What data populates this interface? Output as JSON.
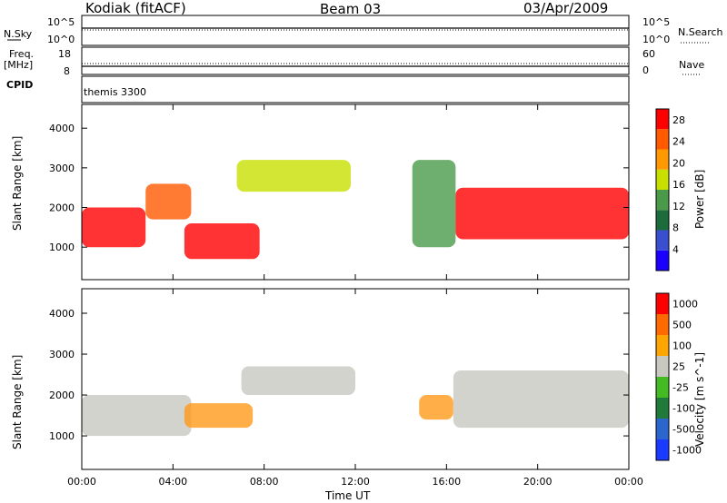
{
  "header": {
    "station": "Kodiak (fitACF)",
    "beam": "Beam 03",
    "date": "03/Apr/2009"
  },
  "top_panels": {
    "nsky_label": "N.Sky",
    "nsearch_label": "N.Search",
    "nsky_ticks": [
      "10^5",
      "10^0"
    ],
    "nsearch_ticks": [
      "10^5",
      "10^0"
    ],
    "freq_label": "Freq.",
    "freq_unit": "[MHz]",
    "freq_ticks": [
      "18",
      "8"
    ],
    "nave_label": "Nave",
    "nave_ticks": [
      "60",
      "0"
    ],
    "cpid_label": "CPID",
    "cpid_value": "themis 3300"
  },
  "chart_data": [
    {
      "type": "heatmap",
      "title": "",
      "xlabel": "Time UT",
      "ylabel": "Slant Range [km]",
      "xlim": [
        "00:00",
        "00:00"
      ],
      "x_ticks": [
        "00:00",
        "04:00",
        "08:00",
        "12:00",
        "16:00",
        "20:00",
        "00:00"
      ],
      "ylim": [
        180,
        4600
      ],
      "y_ticks": [
        1000,
        2000,
        3000,
        4000
      ],
      "colorbar": {
        "label": "Power [dB]",
        "ticks": [
          4,
          8,
          12,
          16,
          20,
          24,
          28
        ],
        "range": [
          0,
          30
        ],
        "colors": [
          "#1a00ff",
          "#3a4fd0",
          "#1c6b3a",
          "#4a9a4a",
          "#c8e000",
          "#ff9900",
          "#ff5a00",
          "#ff0000"
        ]
      },
      "echo_regions": [
        {
          "start_hour": 0.0,
          "end_hour": 2.8,
          "range_min_km": 1000,
          "range_max_km": 2000,
          "max_db": 30
        },
        {
          "start_hour": 2.8,
          "end_hour": 4.8,
          "range_min_km": 1700,
          "range_max_km": 2600,
          "max_db": 26
        },
        {
          "start_hour": 4.5,
          "end_hour": 7.8,
          "range_min_km": 700,
          "range_max_km": 1600,
          "max_db": 30
        },
        {
          "start_hour": 6.8,
          "end_hour": 11.8,
          "range_min_km": 2400,
          "range_max_km": 3200,
          "max_db": 16
        },
        {
          "start_hour": 14.5,
          "end_hour": 16.4,
          "range_min_km": 1000,
          "range_max_km": 3200,
          "max_db": 14
        },
        {
          "start_hour": 16.4,
          "end_hour": 24.0,
          "range_min_km": 1200,
          "range_max_km": 2500,
          "max_db": 28
        }
      ]
    },
    {
      "type": "heatmap",
      "title": "",
      "xlabel": "Time UT",
      "ylabel": "Slant Range [km]",
      "x_ticks": [
        "00:00",
        "04:00",
        "08:00",
        "12:00",
        "16:00",
        "20:00",
        "00:00"
      ],
      "ylim": [
        180,
        4600
      ],
      "y_ticks": [
        1000,
        2000,
        3000,
        4000
      ],
      "colorbar": {
        "label": "Velocity [m s^-1]",
        "ticks": [
          1000,
          500,
          100,
          25,
          -25,
          -100,
          -500,
          -1000
        ],
        "colors": [
          "#1a3aff",
          "#2a66cc",
          "#207a3a",
          "#44bb22",
          "#c8c8c0",
          "#ffa500",
          "#ff6a00",
          "#ff0000"
        ]
      },
      "echo_regions": [
        {
          "start_hour": 0.0,
          "end_hour": 4.8,
          "range_min_km": 1000,
          "range_max_km": 2000,
          "velocity": "-25 to 25"
        },
        {
          "start_hour": 4.5,
          "end_hour": 7.5,
          "range_min_km": 1200,
          "range_max_km": 1800,
          "velocity": "-100 to -500"
        },
        {
          "start_hour": 7.0,
          "end_hour": 12.0,
          "range_min_km": 2000,
          "range_max_km": 2700,
          "velocity": "-25 to 25"
        },
        {
          "start_hour": 14.8,
          "end_hour": 16.3,
          "range_min_km": 1400,
          "range_max_km": 2000,
          "velocity": "-100 to -500"
        },
        {
          "start_hour": 16.3,
          "end_hour": 24.0,
          "range_min_km": 1200,
          "range_max_km": 2600,
          "velocity": "-25 to 25"
        }
      ]
    }
  ]
}
